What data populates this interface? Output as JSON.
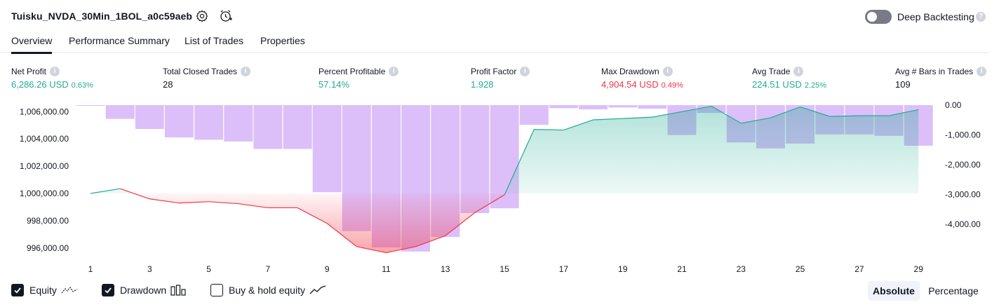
{
  "header": {
    "title": "Tuisku_NVDA_30Min_1BOL_a0c59aeb",
    "deep_backtesting_label": "Deep Backtesting",
    "deep_backtesting_enabled": false
  },
  "tabs": [
    {
      "label": "Overview",
      "active": true
    },
    {
      "label": "Performance Summary",
      "active": false
    },
    {
      "label": "List of Trades",
      "active": false
    },
    {
      "label": "Properties",
      "active": false
    }
  ],
  "stats": {
    "net_profit": {
      "label": "Net Profit",
      "value": "6,286.26 USD",
      "pct": "0.63%"
    },
    "total_closed_trades": {
      "label": "Total Closed Trades",
      "value": "28"
    },
    "percent_profitable": {
      "label": "Percent Profitable",
      "value": "57.14%"
    },
    "profit_factor": {
      "label": "Profit Factor",
      "value": "1.928"
    },
    "max_drawdown": {
      "label": "Max Drawdown",
      "value": "4,904.54 USD",
      "pct": "0.49%"
    },
    "avg_trade": {
      "label": "Avg Trade",
      "value": "224.51 USD",
      "pct": "2.25%"
    },
    "avg_bars": {
      "label": "Avg # Bars in Trades",
      "value": "109"
    }
  },
  "colors": {
    "green": "#22ab94",
    "red": "#f23645",
    "drawdown_bar": "#d9bcf7",
    "text": "#131722",
    "muted": "#787b86"
  },
  "chart_data": {
    "type": "line",
    "x": [
      1,
      2,
      3,
      4,
      5,
      6,
      7,
      8,
      9,
      10,
      11,
      12,
      13,
      14,
      15,
      16,
      17,
      18,
      19,
      20,
      21,
      22,
      23,
      24,
      25,
      26,
      27,
      28,
      29
    ],
    "x_ticks": [
      "1",
      "3",
      "5",
      "7",
      "9",
      "11",
      "13",
      "15",
      "17",
      "19",
      "21",
      "23",
      "25",
      "27",
      "29"
    ],
    "left_axis": {
      "label_ticks": [
        "1,006,000.00",
        "1,004,000.00",
        "1,002,000.00",
        "1,000,000.00",
        "998,000.00",
        "996,000.00"
      ],
      "tick_values": [
        1006000,
        1004000,
        1002000,
        1000000,
        998000,
        996000
      ],
      "range": [
        995000,
        1006600
      ]
    },
    "right_axis": {
      "label_ticks": [
        "0.00",
        "-1,000.00",
        "-2,000.00",
        "-3,000.00",
        "-4,000.00"
      ],
      "tick_values": [
        0,
        -1000,
        -2000,
        -3000,
        -4000
      ],
      "range": [
        -5500,
        0
      ]
    },
    "series": [
      {
        "name": "Equity",
        "axis": "left",
        "values": [
          1000000,
          1000350,
          999600,
          999300,
          999400,
          999250,
          998950,
          998950,
          997800,
          996100,
          995650,
          996100,
          996900,
          998600,
          999900,
          1004700,
          1004650,
          1005400,
          1005500,
          1005600,
          1006000,
          1006400,
          1005150,
          1005550,
          1006350,
          1005650,
          1005700,
          1005700,
          1006150
        ]
      },
      {
        "name": "Drawdown",
        "axis": "right",
        "type": "bar",
        "values": [
          0,
          -460,
          -800,
          -1080,
          -1160,
          -1220,
          -1470,
          -1470,
          -2920,
          -4220,
          -4770,
          -4910,
          -4420,
          -3620,
          -3460,
          -660,
          -100,
          -140,
          -80,
          -120,
          -1000,
          -260,
          -1250,
          -1450,
          -1290,
          -980,
          -980,
          -1030,
          -1360
        ]
      }
    ],
    "legend": [
      "Equity",
      "Drawdown",
      "Buy & hold equity"
    ],
    "legend_enabled": [
      true,
      true,
      false
    ]
  },
  "legend": {
    "equity_label": "Equity",
    "drawdown_label": "Drawdown",
    "buy_hold_label": "Buy & hold equity"
  },
  "mode": {
    "absolute_label": "Absolute",
    "percentage_label": "Percentage",
    "selected": "Absolute"
  }
}
